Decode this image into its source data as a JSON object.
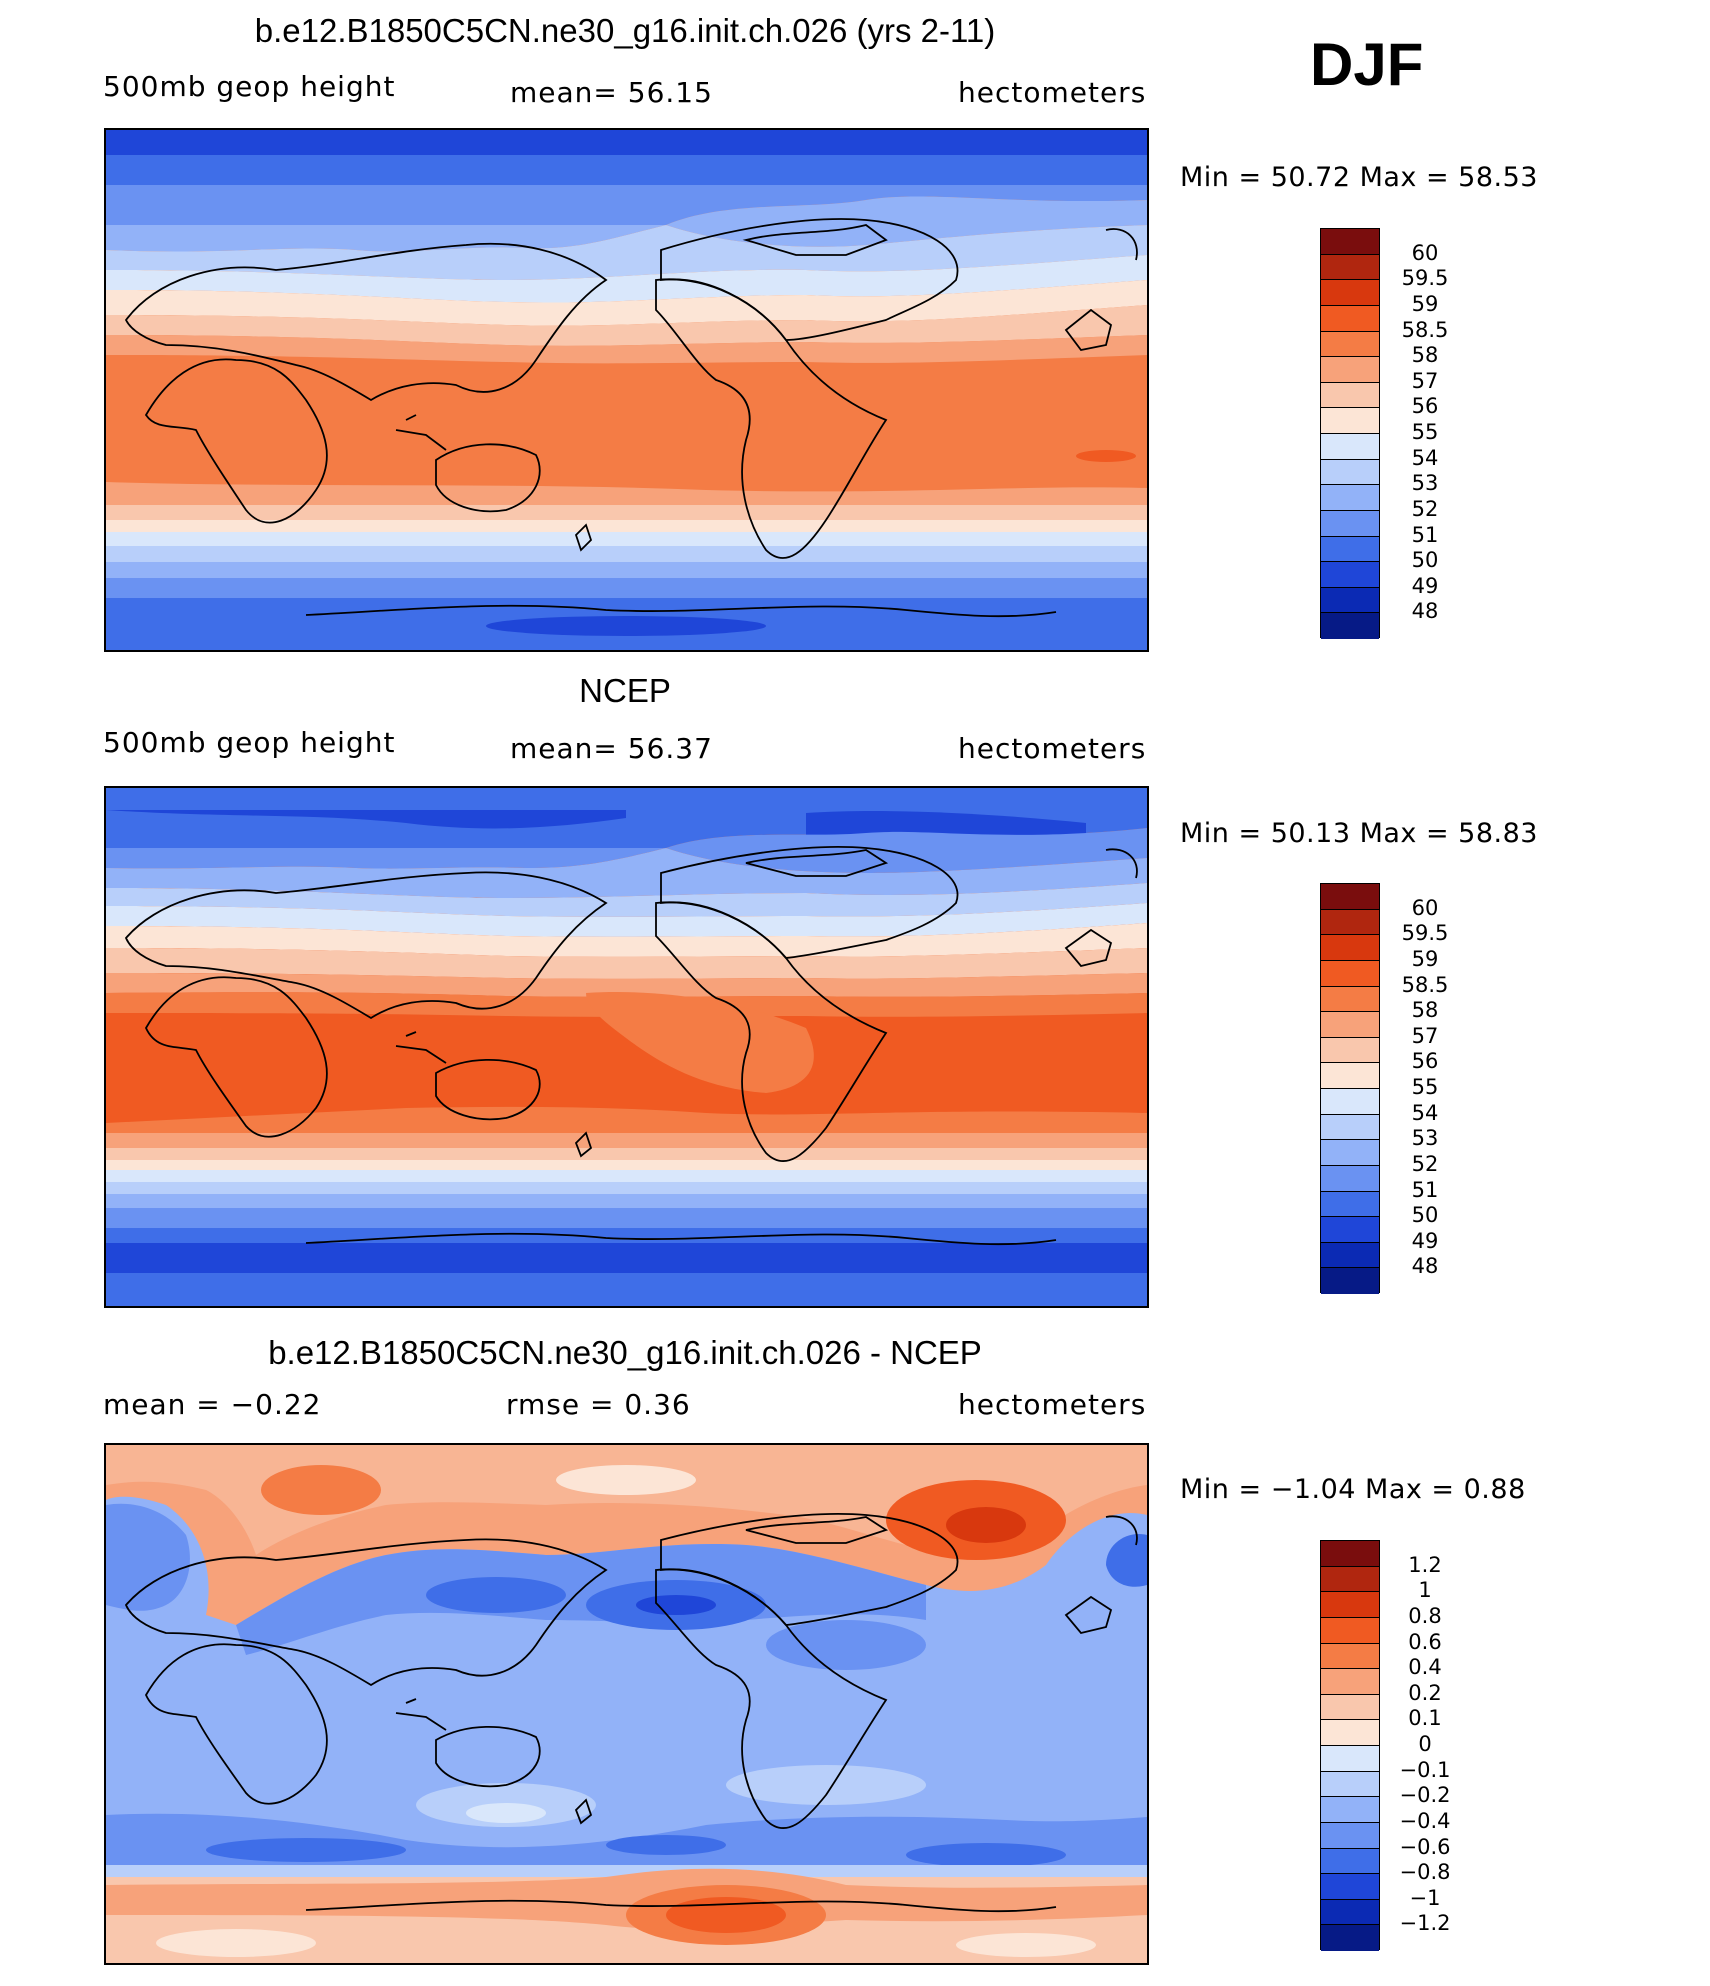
{
  "season": "DJF",
  "panels": [
    {
      "title": "b.e12.B1850C5CN.ne30_g16.init.ch.026 (yrs 2-11)",
      "left_label": "500mb geop height",
      "center_label": "mean=   56.15",
      "right_label": "hectometers",
      "minmax": "Min =   50.72  Max =   58.53",
      "legend_labels": [
        "60",
        "59.5",
        "59",
        "58.5",
        "58",
        "57",
        "56",
        "55",
        "54",
        "53",
        "52",
        "51",
        "50",
        "49",
        "48"
      ]
    },
    {
      "title": "NCEP",
      "left_label": "500mb geop height",
      "center_label": "mean=   56.37",
      "right_label": "hectometers",
      "minmax": "Min =   50.13  Max =   58.83",
      "legend_labels": [
        "60",
        "59.5",
        "59",
        "58.5",
        "58",
        "57",
        "56",
        "55",
        "54",
        "53",
        "52",
        "51",
        "50",
        "49",
        "48"
      ]
    },
    {
      "title": "b.e12.B1850C5CN.ne30_g16.init.ch.026 - NCEP",
      "left_label": "mean =   −0.22",
      "center_label": "rmse =    0.36",
      "right_label": "hectometers",
      "minmax": "Min =  −1.04  Max =    0.88",
      "legend_labels": [
        "1.2",
        "1",
        "0.8",
        "0.6",
        "0.4",
        "0.2",
        "0.1",
        "0",
        "−0.1",
        "−0.2",
        "−0.4",
        "−0.6",
        "−0.8",
        "−1",
        "−1.2"
      ]
    }
  ],
  "colors": {
    "legend": [
      "#7a0d0d",
      "#b0260f",
      "#d8380e",
      "#f05a22",
      "#f47c45",
      "#f7a27a",
      "#f9c7ad",
      "#fce5d6",
      "#d9e7fb",
      "#b8cffa",
      "#92b2f8",
      "#6a92f2",
      "#3f6ee8",
      "#1f46d8",
      "#0b2ab4",
      "#061a86"
    ]
  },
  "chart_data": [
    {
      "type": "heatmap",
      "title": "b.e12.B1850C5CN.ne30_g16.init.ch.026 (yrs 2-11)",
      "variable": "500mb geop height",
      "units": "hectometers",
      "mean": 56.15,
      "min": 50.72,
      "max": 58.53,
      "contour_levels": [
        48,
        49,
        50,
        51,
        52,
        53,
        54,
        55,
        56,
        57,
        58,
        58.5,
        59,
        59.5,
        60
      ]
    },
    {
      "type": "heatmap",
      "title": "NCEP",
      "variable": "500mb geop height",
      "units": "hectometers",
      "mean": 56.37,
      "min": 50.13,
      "max": 58.83,
      "contour_levels": [
        48,
        49,
        50,
        51,
        52,
        53,
        54,
        55,
        56,
        57,
        58,
        58.5,
        59,
        59.5,
        60
      ]
    },
    {
      "type": "heatmap",
      "title": "b.e12.B1850C5CN.ne30_g16.init.ch.026 - NCEP",
      "units": "hectometers",
      "mean": -0.22,
      "rmse": 0.36,
      "min": -1.04,
      "max": 0.88,
      "contour_levels": [
        -1.2,
        -1,
        -0.8,
        -0.6,
        -0.4,
        -0.2,
        -0.1,
        0,
        0.1,
        0.2,
        0.4,
        0.6,
        0.8,
        1,
        1.2
      ]
    }
  ]
}
